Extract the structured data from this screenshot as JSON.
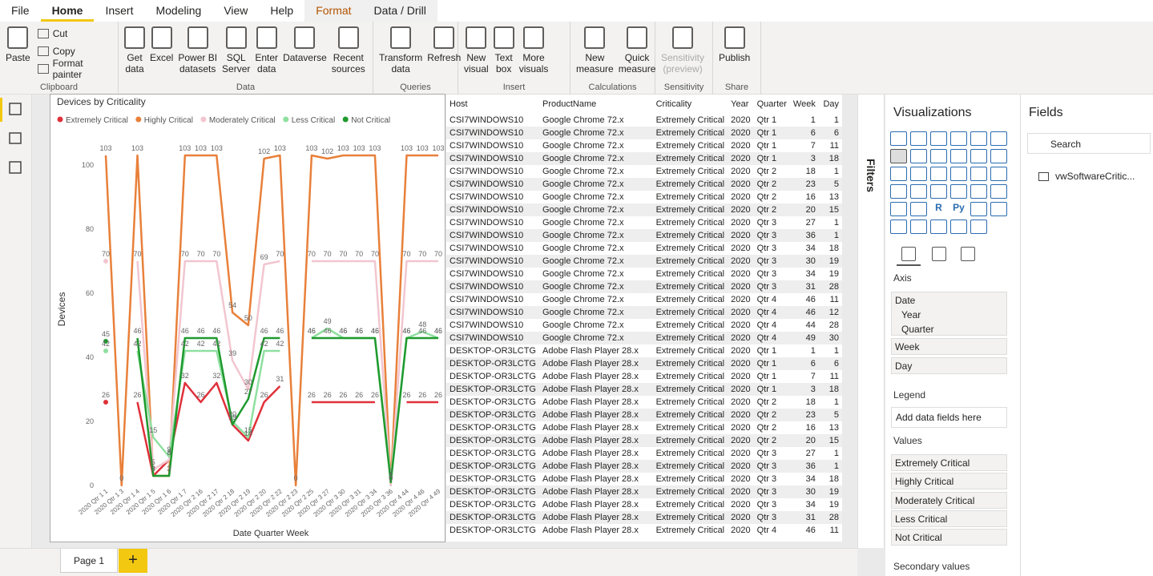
{
  "menu": [
    "File",
    "Home",
    "Insert",
    "Modeling",
    "View",
    "Help",
    "Format",
    "Data / Drill"
  ],
  "ribbon": [
    {
      "name": "Clipboard",
      "buttons": [
        "Paste"
      ],
      "small": [
        "Cut",
        "Copy",
        "Format painter"
      ]
    },
    {
      "name": "Data",
      "buttons": [
        "Get\ndata",
        "Excel",
        "Power BI\ndatasets",
        "SQL\nServer",
        "Enter\ndata",
        "Dataverse",
        "Recent\nsources"
      ]
    },
    {
      "name": "Queries",
      "buttons": [
        "Transform\ndata",
        "Refresh"
      ]
    },
    {
      "name": "Insert",
      "buttons": [
        "New\nvisual",
        "Text\nbox",
        "More\nvisuals"
      ]
    },
    {
      "name": "Calculations",
      "buttons": [
        "New\nmeasure",
        "Quick\nmeasure"
      ]
    },
    {
      "name": "Sensitivity",
      "buttons": [
        "Sensitivity\n(preview)"
      ]
    },
    {
      "name": "Share",
      "buttons": [
        "Publish"
      ]
    }
  ],
  "chart_data": {
    "type": "line",
    "title": "Devices by Criticality",
    "x_label": "Date Quarter Week",
    "y_label": "Devices",
    "categories": [
      "2020 Qtr 1 1",
      "2020 Qtr 1 3",
      "2020 Qtr 1 4",
      "2020 Qtr 1 5",
      "2020 Qtr 1 6",
      "2020 Qtr 1 7",
      "2020 Qtr 2 16",
      "2020 Qtr 2 17",
      "2020 Qtr 2 18",
      "2020 Qtr 2 19",
      "2020 Qtr 2 20",
      "2020 Qtr 2 22",
      "2020 Qtr 2 23",
      "2020 Qtr 2 25",
      "2020 Qtr 3 27",
      "2020 Qtr 3 30",
      "2020 Qtr 3 31",
      "2020 Qtr 3 34",
      "2020 Qtr 3 36",
      "2020 Qtr 4 44",
      "2020 Qtr 4 46",
      "2020 Qtr 4 49"
    ],
    "ylim": [
      0,
      105
    ],
    "yticks": [
      0,
      20,
      40,
      60,
      80,
      100
    ],
    "grid": false,
    "series": [
      {
        "name": "Extremely Critical",
        "color": "#e0303a",
        "values": [
          26,
          null,
          26,
          3,
          8,
          32,
          26,
          32,
          19,
          14,
          26,
          31,
          null,
          26,
          26,
          26,
          26,
          26,
          null,
          26,
          26,
          26
        ]
      },
      {
        "name": "Highly Critical",
        "color": "#e8803a",
        "values": [
          103,
          0,
          103,
          3,
          3,
          103,
          103,
          103,
          54,
          50,
          102,
          103,
          0,
          103,
          102,
          103,
          103,
          103,
          0,
          103,
          103,
          103
        ]
      },
      {
        "name": "Moderately Critical",
        "color": "#f2c6d0",
        "values": [
          70,
          null,
          70,
          5,
          8,
          70,
          70,
          70,
          39,
          30,
          69,
          70,
          null,
          70,
          70,
          70,
          70,
          70,
          0,
          70,
          70,
          70
        ]
      },
      {
        "name": "Less Critical",
        "color": "#8fe0a0",
        "values": [
          42,
          null,
          42,
          15,
          9,
          42,
          42,
          42,
          20,
          15,
          42,
          42,
          null,
          46,
          49,
          46,
          46,
          46,
          2,
          46,
          48,
          46
        ]
      },
      {
        "name": "Not Critical",
        "color": "#1f9a2e",
        "values": [
          45,
          null,
          46,
          3,
          3,
          46,
          46,
          46,
          19,
          27,
          46,
          46,
          null,
          46,
          46,
          46,
          46,
          46,
          1,
          46,
          46,
          46
        ]
      }
    ]
  },
  "table": {
    "columns": [
      "Host",
      "ProductName",
      "Criticality",
      "Year",
      "Quarter",
      "Week",
      "Day"
    ],
    "rows": [
      [
        "CSI7WINDOWS10",
        "Google Chrome 72.x",
        "Extremely Critical",
        2020,
        "Qtr 1",
        1,
        1
      ],
      [
        "CSI7WINDOWS10",
        "Google Chrome 72.x",
        "Extremely Critical",
        2020,
        "Qtr 1",
        6,
        6
      ],
      [
        "CSI7WINDOWS10",
        "Google Chrome 72.x",
        "Extremely Critical",
        2020,
        "Qtr 1",
        7,
        11
      ],
      [
        "CSI7WINDOWS10",
        "Google Chrome 72.x",
        "Extremely Critical",
        2020,
        "Qtr 1",
        3,
        18
      ],
      [
        "CSI7WINDOWS10",
        "Google Chrome 72.x",
        "Extremely Critical",
        2020,
        "Qtr 2",
        18,
        1
      ],
      [
        "CSI7WINDOWS10",
        "Google Chrome 72.x",
        "Extremely Critical",
        2020,
        "Qtr 2",
        23,
        5
      ],
      [
        "CSI7WINDOWS10",
        "Google Chrome 72.x",
        "Extremely Critical",
        2020,
        "Qtr 2",
        16,
        13
      ],
      [
        "CSI7WINDOWS10",
        "Google Chrome 72.x",
        "Extremely Critical",
        2020,
        "Qtr 2",
        20,
        15
      ],
      [
        "CSI7WINDOWS10",
        "Google Chrome 72.x",
        "Extremely Critical",
        2020,
        "Qtr 3",
        27,
        1
      ],
      [
        "CSI7WINDOWS10",
        "Google Chrome 72.x",
        "Extremely Critical",
        2020,
        "Qtr 3",
        36,
        1
      ],
      [
        "CSI7WINDOWS10",
        "Google Chrome 72.x",
        "Extremely Critical",
        2020,
        "Qtr 3",
        34,
        18
      ],
      [
        "CSI7WINDOWS10",
        "Google Chrome 72.x",
        "Extremely Critical",
        2020,
        "Qtr 3",
        30,
        19
      ],
      [
        "CSI7WINDOWS10",
        "Google Chrome 72.x",
        "Extremely Critical",
        2020,
        "Qtr 3",
        34,
        19
      ],
      [
        "CSI7WINDOWS10",
        "Google Chrome 72.x",
        "Extremely Critical",
        2020,
        "Qtr 3",
        31,
        28
      ],
      [
        "CSI7WINDOWS10",
        "Google Chrome 72.x",
        "Extremely Critical",
        2020,
        "Qtr 4",
        46,
        11
      ],
      [
        "CSI7WINDOWS10",
        "Google Chrome 72.x",
        "Extremely Critical",
        2020,
        "Qtr 4",
        46,
        12
      ],
      [
        "CSI7WINDOWS10",
        "Google Chrome 72.x",
        "Extremely Critical",
        2020,
        "Qtr 4",
        44,
        28
      ],
      [
        "CSI7WINDOWS10",
        "Google Chrome 72.x",
        "Extremely Critical",
        2020,
        "Qtr 4",
        49,
        30
      ],
      [
        "DESKTOP-OR3LCTG",
        "Adobe Flash Player 28.x",
        "Extremely Critical",
        2020,
        "Qtr 1",
        1,
        1
      ],
      [
        "DESKTOP-OR3LCTG",
        "Adobe Flash Player 28.x",
        "Extremely Critical",
        2020,
        "Qtr 1",
        6,
        6
      ],
      [
        "DESKTOP-OR3LCTG",
        "Adobe Flash Player 28.x",
        "Extremely Critical",
        2020,
        "Qtr 1",
        7,
        11
      ],
      [
        "DESKTOP-OR3LCTG",
        "Adobe Flash Player 28.x",
        "Extremely Critical",
        2020,
        "Qtr 1",
        3,
        18
      ],
      [
        "DESKTOP-OR3LCTG",
        "Adobe Flash Player 28.x",
        "Extremely Critical",
        2020,
        "Qtr 2",
        18,
        1
      ],
      [
        "DESKTOP-OR3LCTG",
        "Adobe Flash Player 28.x",
        "Extremely Critical",
        2020,
        "Qtr 2",
        23,
        5
      ],
      [
        "DESKTOP-OR3LCTG",
        "Adobe Flash Player 28.x",
        "Extremely Critical",
        2020,
        "Qtr 2",
        16,
        13
      ],
      [
        "DESKTOP-OR3LCTG",
        "Adobe Flash Player 28.x",
        "Extremely Critical",
        2020,
        "Qtr 2",
        20,
        15
      ],
      [
        "DESKTOP-OR3LCTG",
        "Adobe Flash Player 28.x",
        "Extremely Critical",
        2020,
        "Qtr 3",
        27,
        1
      ],
      [
        "DESKTOP-OR3LCTG",
        "Adobe Flash Player 28.x",
        "Extremely Critical",
        2020,
        "Qtr 3",
        36,
        1
      ],
      [
        "DESKTOP-OR3LCTG",
        "Adobe Flash Player 28.x",
        "Extremely Critical",
        2020,
        "Qtr 3",
        34,
        18
      ],
      [
        "DESKTOP-OR3LCTG",
        "Adobe Flash Player 28.x",
        "Extremely Critical",
        2020,
        "Qtr 3",
        30,
        19
      ],
      [
        "DESKTOP-OR3LCTG",
        "Adobe Flash Player 28.x",
        "Extremely Critical",
        2020,
        "Qtr 3",
        34,
        19
      ],
      [
        "DESKTOP-OR3LCTG",
        "Adobe Flash Player 28.x",
        "Extremely Critical",
        2020,
        "Qtr 3",
        31,
        28
      ],
      [
        "DESKTOP-OR3LCTG",
        "Adobe Flash Player 28.x",
        "Extremely Critical",
        2020,
        "Qtr 4",
        46,
        11
      ]
    ]
  },
  "filters": "Filters",
  "visualizations": {
    "title": "Visualizations",
    "r_icon": "R",
    "py_icon": "Py",
    "axis": {
      "label": "Axis",
      "fields": [
        {
          "name": "Date",
          "children": [
            "Year",
            "Quarter"
          ]
        },
        {
          "name": "Week"
        },
        {
          "name": "Day"
        }
      ]
    },
    "legend": {
      "label": "Legend",
      "placeholder": "Add data fields here"
    },
    "values": {
      "label": "Values",
      "fields": [
        "Extremely Critical",
        "Highly Critical",
        "Moderately Critical",
        "Less Critical",
        "Not Critical"
      ]
    },
    "secondary": "Secondary values"
  },
  "fields": {
    "title": "Fields",
    "search": "Search",
    "tables": [
      "vwSoftwareCritic..."
    ]
  },
  "pages": [
    "Page 1"
  ]
}
